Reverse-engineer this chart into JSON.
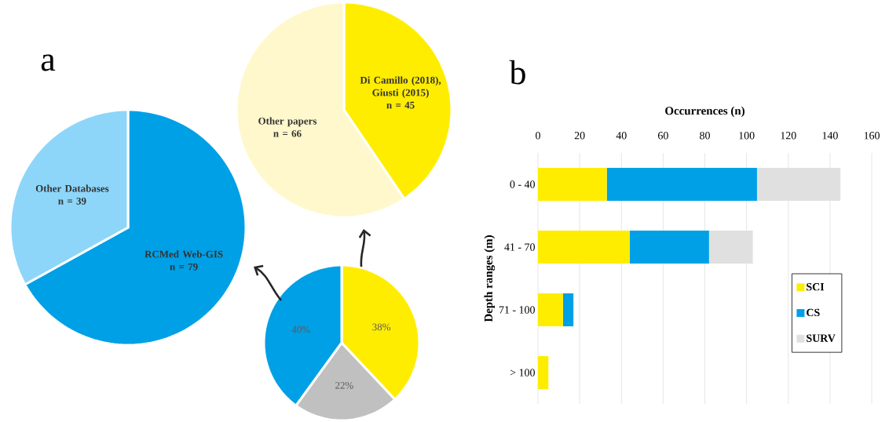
{
  "chart_data": [
    {
      "type": "pie",
      "title": "a",
      "categories": [
        "RCMed Web-GIS",
        "Other Databases"
      ],
      "values": [
        79,
        39
      ],
      "colors": [
        "#00a0e6",
        "#8dd6f9"
      ],
      "value_labels": [
        "n = 79",
        "n = 39"
      ]
    },
    {
      "type": "pie",
      "categories": [
        "Di Camillo (2018), Giusti (2015)",
        "Other papers"
      ],
      "values": [
        45,
        66
      ],
      "colors": [
        "#ffed00",
        "#fff8cc"
      ],
      "value_labels": [
        "n = 45",
        "n = 66"
      ]
    },
    {
      "type": "pie",
      "categories": [
        null,
        null,
        null
      ],
      "values": [
        38,
        22,
        40
      ],
      "colors": [
        "#ffed00",
        "#c0c0c0",
        "#00a0e6"
      ],
      "value_labels": [
        "38%",
        "22%",
        "40%"
      ]
    },
    {
      "type": "bar",
      "title": "b",
      "orientation": "horizontal",
      "stacked": true,
      "categories": [
        "0 - 40",
        "41 - 70",
        "71 - 100",
        "> 100"
      ],
      "xlabel": "Occurrences (n)",
      "ylabel": "Depth ranges (m)",
      "xlim": [
        0,
        160
      ],
      "xticks": [
        0,
        20,
        40,
        60,
        80,
        100,
        120,
        140,
        160
      ],
      "grid": "x",
      "legend": "right",
      "series": [
        {
          "name": "SCI",
          "color": "#ffed00",
          "values": [
            33,
            44,
            12,
            5
          ]
        },
        {
          "name": "CS",
          "color": "#00a0e6",
          "values": [
            72,
            38,
            5,
            0
          ]
        },
        {
          "name": "SURV",
          "color": "#e0e0e0",
          "values": [
            40,
            21,
            0,
            0
          ]
        }
      ]
    }
  ]
}
